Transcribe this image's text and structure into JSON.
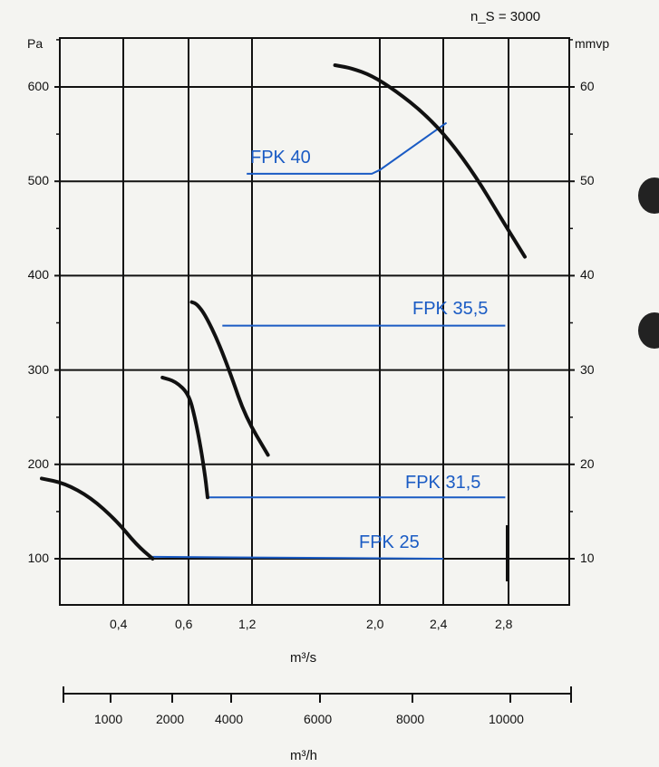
{
  "header": {
    "speed_label": "n_S = 3000"
  },
  "chart_data": {
    "type": "line",
    "left_unit": "Pa",
    "right_unit": "mmvp",
    "x_unit_top": "m³/s",
    "x_unit_bottom": "m³/h",
    "y_ticks_left": [
      "100",
      "200",
      "300",
      "400",
      "500",
      "600"
    ],
    "y_ticks_right": [
      "10",
      "20",
      "30",
      "40",
      "50",
      "60"
    ],
    "x_ticks_top": [
      "0,4",
      "0,6",
      "1,2",
      "2,0",
      "2,4",
      "2,8"
    ],
    "x_ticks_bottom": [
      "1000",
      "2000",
      "4000",
      "6000",
      "8000",
      "10000"
    ],
    "ylim": [
      50,
      650
    ],
    "series": [
      {
        "name": "FPK 25",
        "points": [
          [
            0.15,
            185
          ],
          [
            0.22,
            180
          ],
          [
            0.3,
            165
          ],
          [
            0.38,
            140
          ],
          [
            0.44,
            115
          ],
          [
            0.49,
            100
          ]
        ]
      },
      {
        "name": "FPK 31,5",
        "points": [
          [
            0.52,
            292
          ],
          [
            0.56,
            288
          ],
          [
            0.6,
            275
          ],
          [
            0.66,
            250
          ],
          [
            0.72,
            215
          ],
          [
            0.76,
            185
          ],
          [
            0.78,
            165
          ]
        ]
      },
      {
        "name": "FPK 35,5",
        "points": [
          [
            0.63,
            372
          ],
          [
            0.68,
            370
          ],
          [
            0.76,
            358
          ],
          [
            0.88,
            330
          ],
          [
            1.0,
            295
          ],
          [
            1.14,
            250
          ],
          [
            1.3,
            210
          ]
        ]
      },
      {
        "name": "FPK 40",
        "points": [
          [
            1.72,
            623
          ],
          [
            1.82,
            620
          ],
          [
            1.95,
            612
          ],
          [
            2.1,
            596
          ],
          [
            2.28,
            572
          ],
          [
            2.44,
            543
          ],
          [
            2.6,
            505
          ],
          [
            2.75,
            462
          ],
          [
            2.9,
            420
          ]
        ]
      }
    ],
    "blue_lines": [
      {
        "label": "FPK 40",
        "points": [
          [
            1.15,
            508
          ],
          [
            1.95,
            508
          ],
          [
            2.0,
            512
          ],
          [
            2.42,
            562
          ]
        ]
      },
      {
        "label": "FPK 35,5",
        "points": [
          [
            0.92,
            347
          ],
          [
            2.78,
            347
          ]
        ]
      },
      {
        "label": "FPK 31,5",
        "points": [
          [
            0.78,
            165
          ],
          [
            2.78,
            165
          ]
        ]
      },
      {
        "label": "FPK 25",
        "points": [
          [
            0.49,
            102
          ],
          [
            2.4,
            100
          ]
        ]
      }
    ]
  }
}
